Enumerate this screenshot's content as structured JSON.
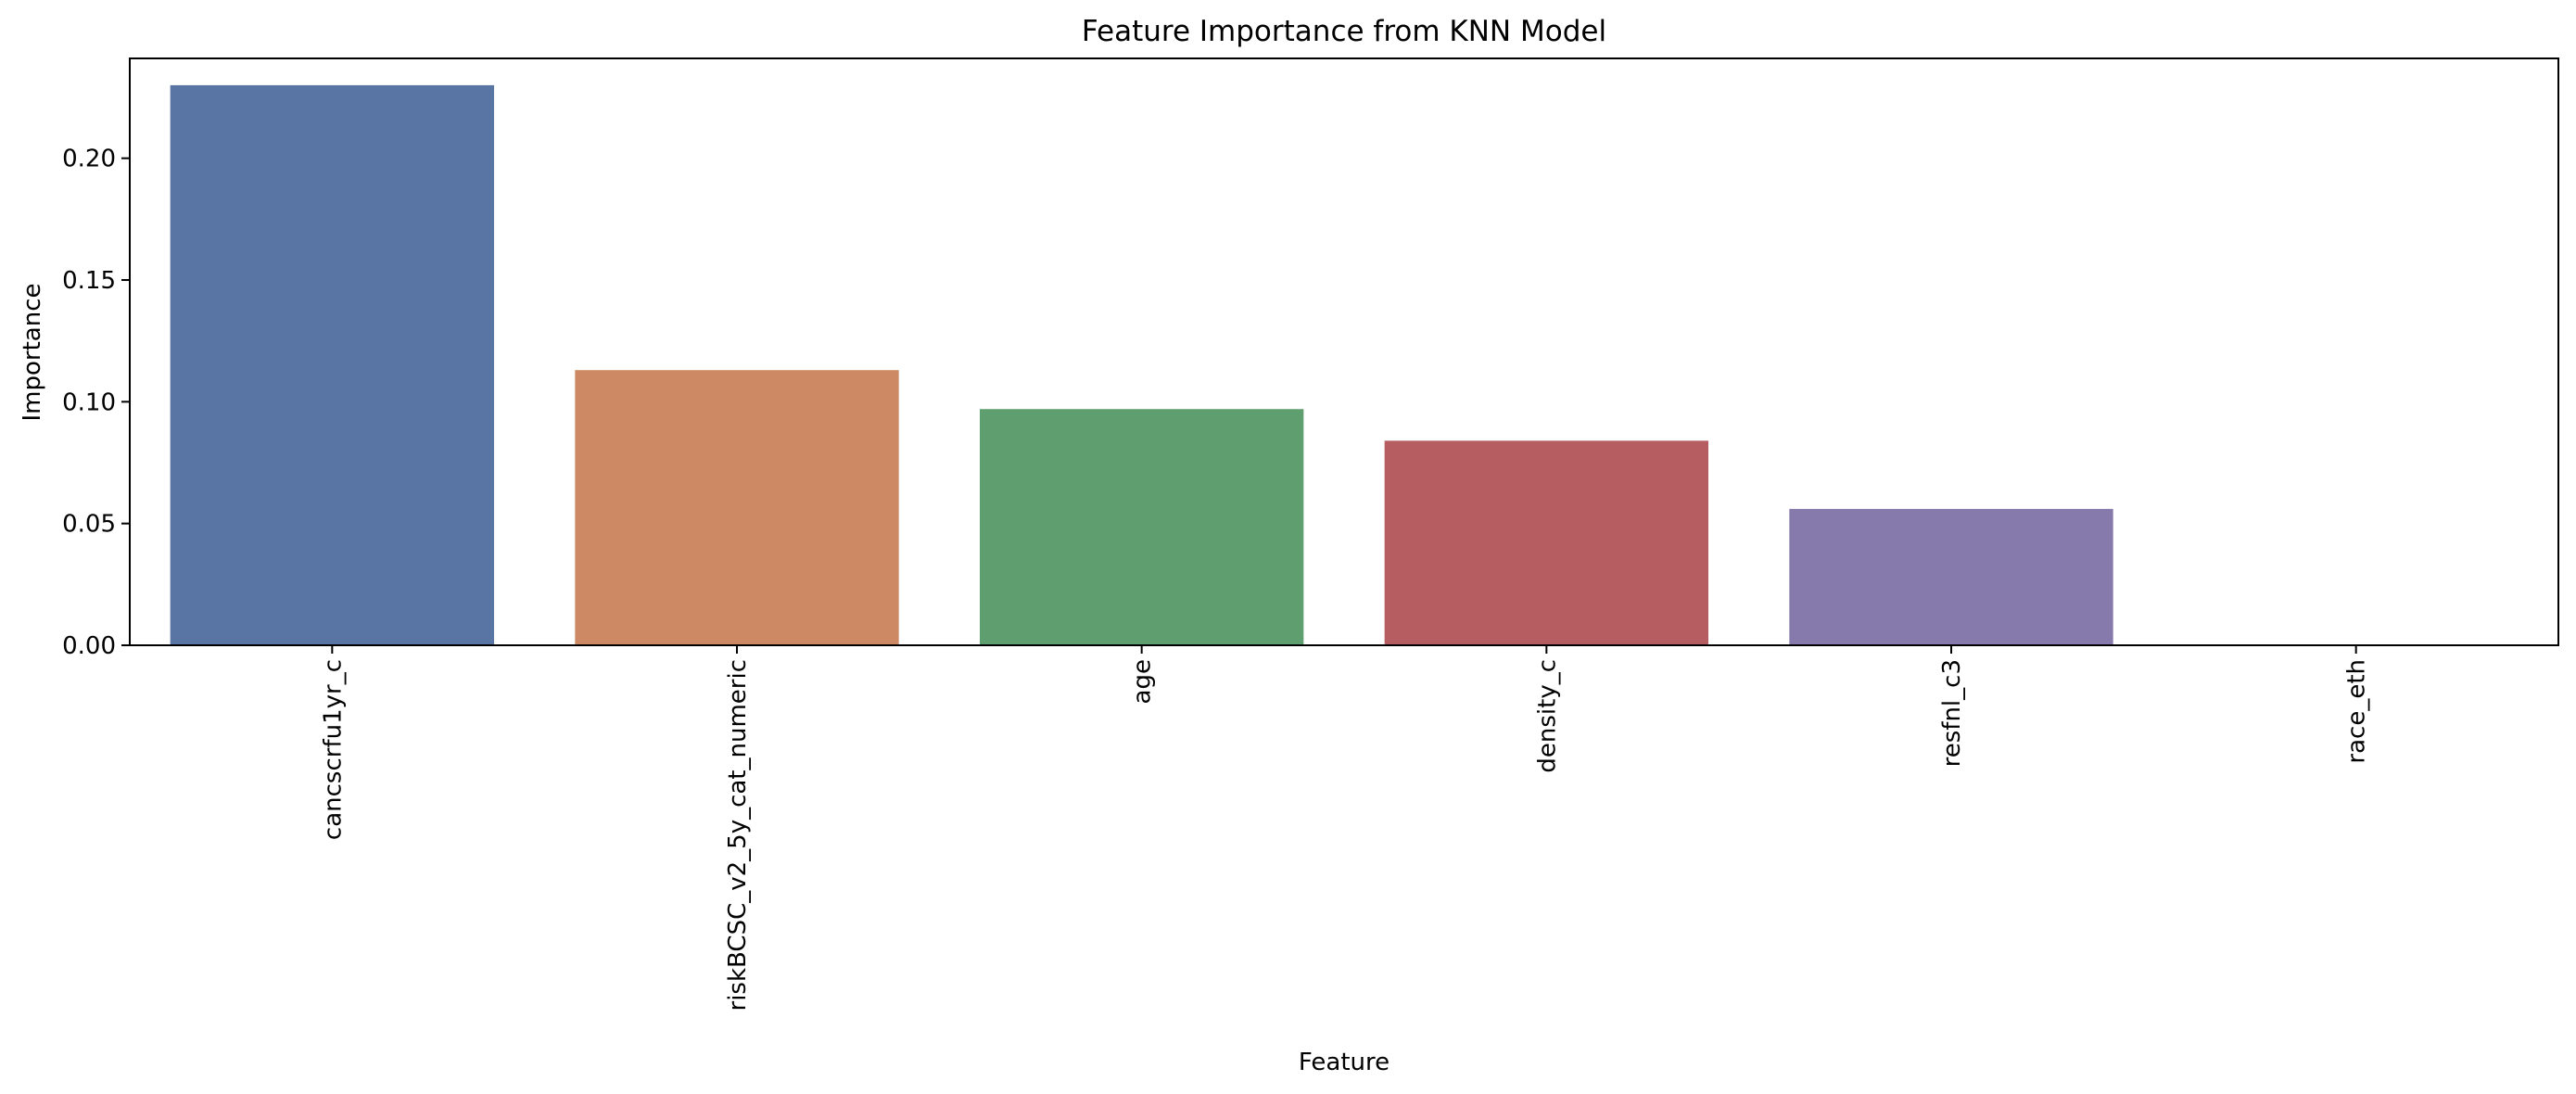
{
  "chart_data": {
    "type": "bar",
    "title": "Feature Importance from KNN Model",
    "xlabel": "Feature",
    "ylabel": "Importance",
    "categories": [
      "cancscrfu1yr_c",
      "riskBCSC_v2_5y_cat_numeric",
      "age",
      "density_c",
      "resfnl_c3",
      "race_eth"
    ],
    "values": [
      0.23,
      0.113,
      0.097,
      0.084,
      0.056,
      0.0
    ],
    "colors": [
      "#5975a4",
      "#cc8963",
      "#5f9e6e",
      "#b55d60",
      "#857aab",
      "#8d7866"
    ],
    "ylim": [
      0,
      0.241
    ],
    "yticks": [
      0.0,
      0.05,
      0.1,
      0.15,
      0.2
    ],
    "ytick_labels": [
      "0.00",
      "0.05",
      "0.10",
      "0.15",
      "0.20"
    ],
    "grid": false,
    "legend": "none",
    "xtick_rotation": "vertical"
  }
}
